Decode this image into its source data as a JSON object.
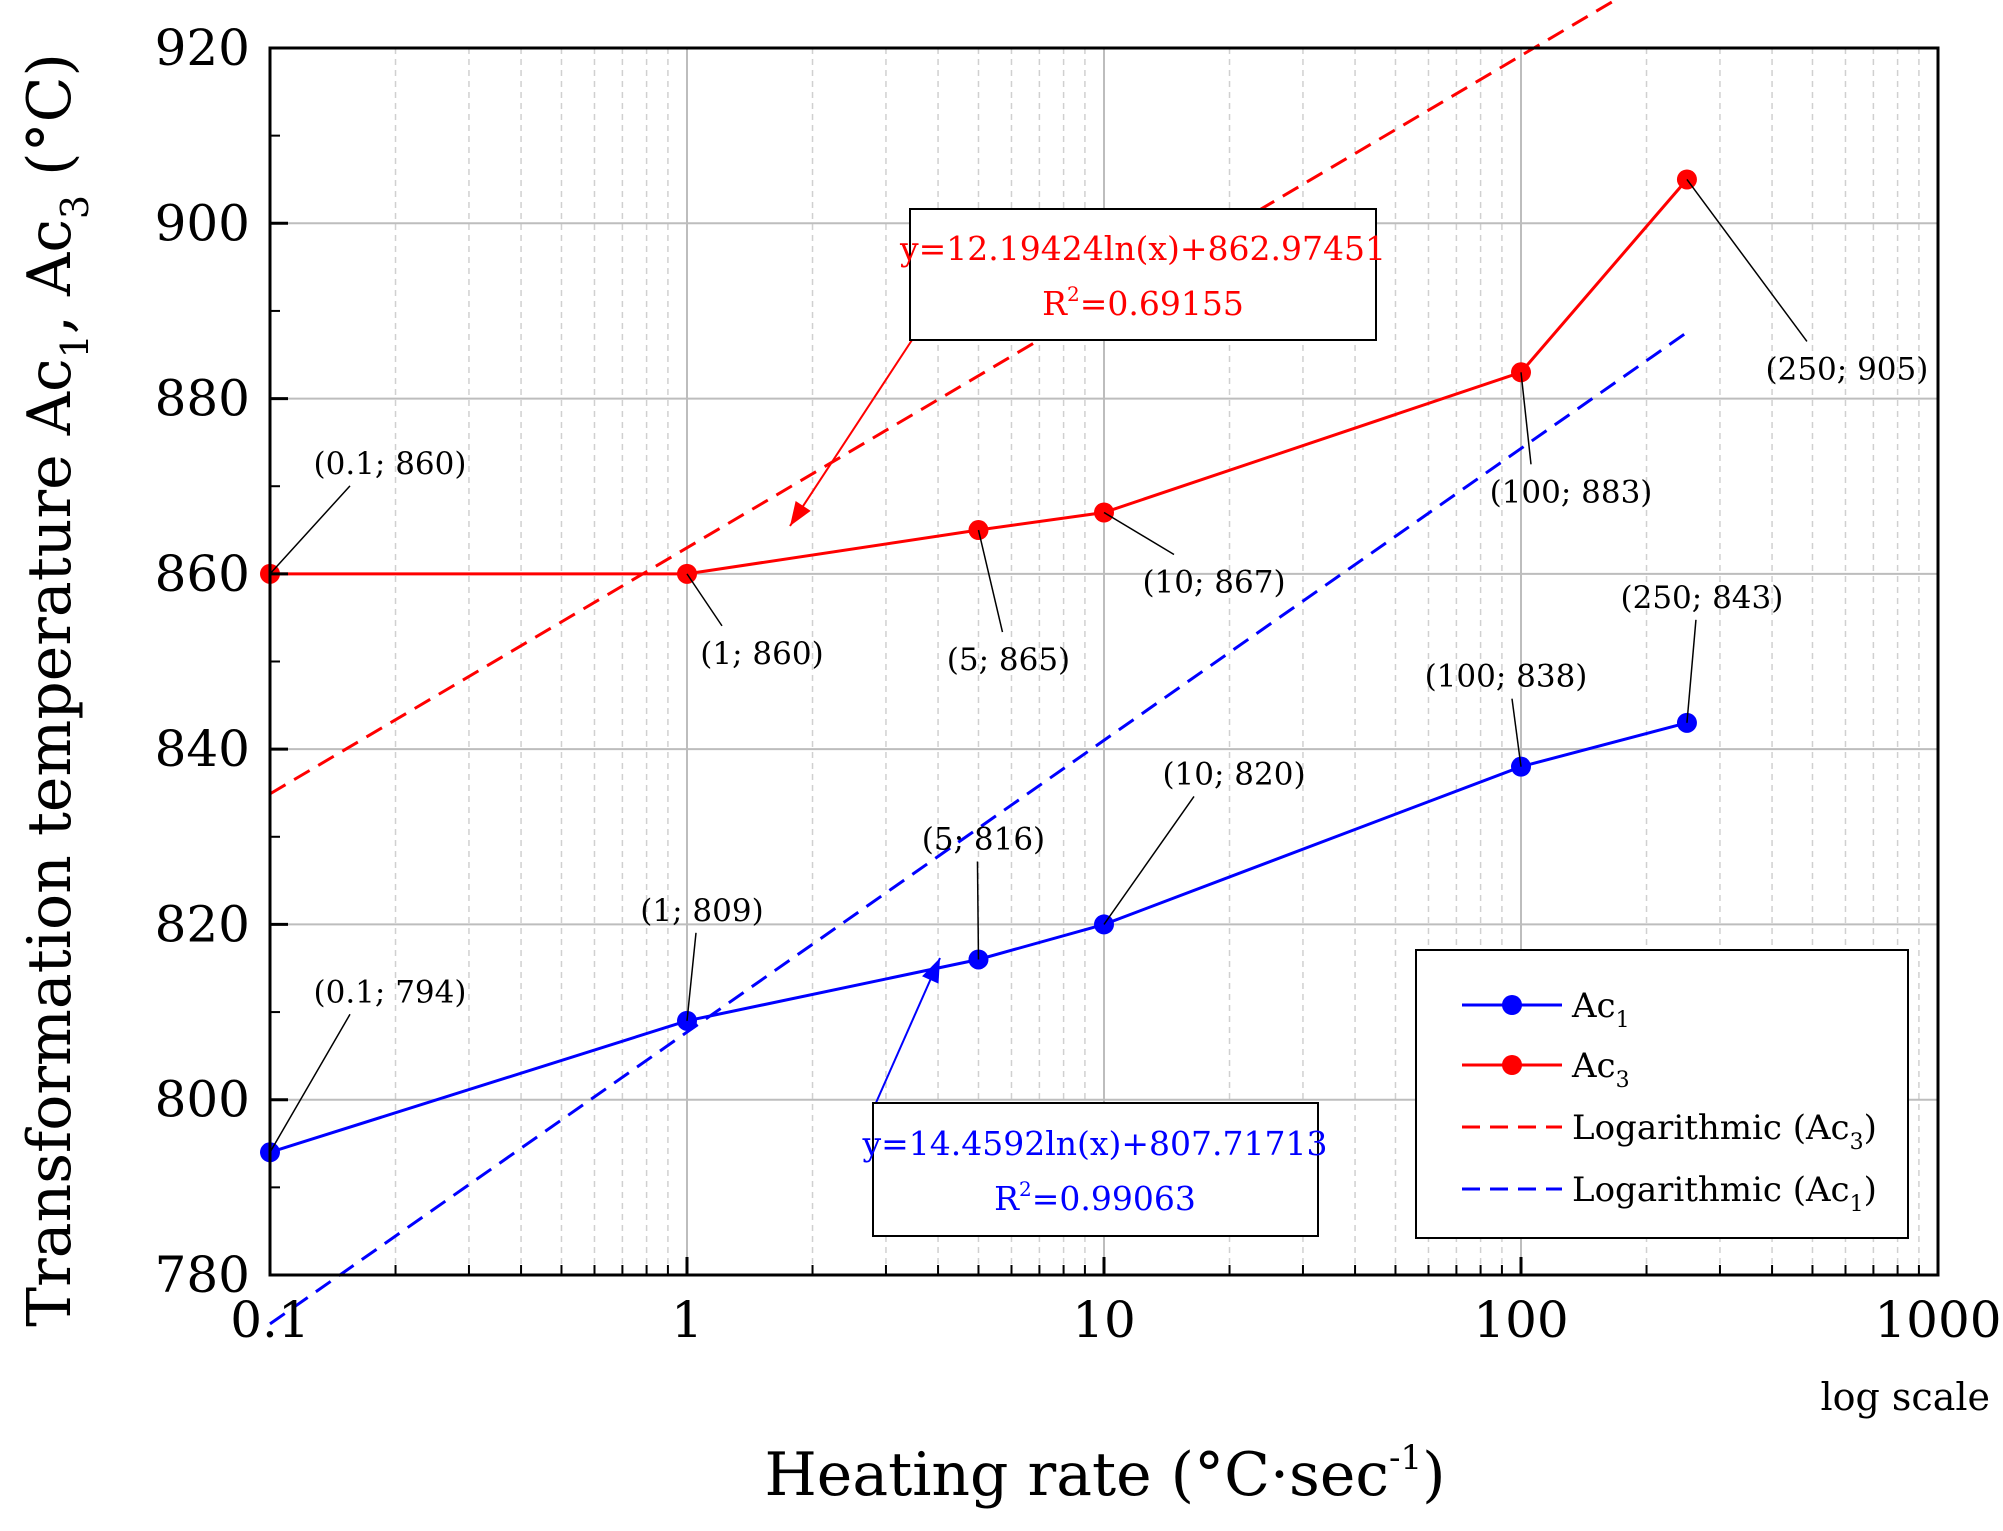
{
  "chart_data": {
    "type": "line",
    "x_scale": "log",
    "xlim": [
      0.1,
      1000
    ],
    "ylim": [
      780,
      920
    ],
    "x_ticks": [
      0.1,
      1,
      10,
      100,
      1000
    ],
    "x_tick_labels": [
      "0.1",
      "1",
      "10",
      "100",
      "1000"
    ],
    "y_ticks": [
      780,
      800,
      820,
      840,
      860,
      880,
      900,
      920
    ],
    "y_tick_labels": [
      "780",
      "800",
      "820",
      "840",
      "860",
      "880",
      "900",
      "920"
    ],
    "xlabel": "Heating rate (°C·sec-1)",
    "xlabel_main": "Heating rate (°C·sec",
    "xlabel_sup": "-1",
    "xlabel_end": ")",
    "x_scale_note": "log scale",
    "ylabel_parts": [
      "Transformation temperature Ac",
      "1",
      ", Ac",
      "3",
      " (°C)"
    ],
    "ylabel": "Transformation temperature Ac1, Ac3 (°C)",
    "grid": true,
    "legend_position": "bottom-right",
    "series": [
      {
        "name": "Ac1",
        "legend_base": "Ac",
        "legend_sub": "1",
        "color": "#0000ff",
        "style": "solid-marker",
        "x": [
          0.1,
          1,
          5,
          10,
          100,
          250
        ],
        "y": [
          794,
          809,
          816,
          820,
          838,
          843
        ],
        "labels": [
          "(0.1; 794)",
          "(1; 809)",
          "(5; 816)",
          "(10; 820)",
          "(100; 838)",
          "(250; 843)"
        ]
      },
      {
        "name": "Ac3",
        "legend_base": "Ac",
        "legend_sub": "3",
        "color": "#ff0000",
        "style": "solid-marker",
        "x": [
          0.1,
          1,
          5,
          10,
          100,
          250
        ],
        "y": [
          860,
          860,
          865,
          867,
          883,
          905
        ],
        "labels": [
          "(0.1; 860)",
          "(1; 860)",
          "(5; 865)",
          "(10; 867)",
          "(100; 883)",
          "(250; 905)"
        ]
      },
      {
        "name": "Logarithmic (Ac3)",
        "legend_base": "Logarithmic (Ac",
        "legend_sub": "3",
        "legend_end": ")",
        "color": "#ff0000",
        "style": "dashed",
        "fit": {
          "a": 12.19424,
          "b": 862.97451
        },
        "x_range": [
          0.1,
          250
        ]
      },
      {
        "name": "Logarithmic (Ac1)",
        "legend_base": "Logarithmic (Ac",
        "legend_sub": "1",
        "legend_end": ")",
        "color": "#0000ff",
        "style": "dashed",
        "fit": {
          "a": 14.4592,
          "b": 807.71713
        },
        "x_range": [
          0.1,
          250
        ]
      }
    ],
    "equations": [
      {
        "line1": "y=12.19424ln(x)+862.97451",
        "r2_base": "R",
        "r2_sup": "2",
        "r2_val": "=0.69155",
        "color": "#ff0000"
      },
      {
        "line1": "y=14.4592ln(x)+807.71713",
        "r2_base": "R",
        "r2_sup": "2",
        "r2_val": "=0.99063",
        "color": "#0000ff"
      }
    ]
  }
}
